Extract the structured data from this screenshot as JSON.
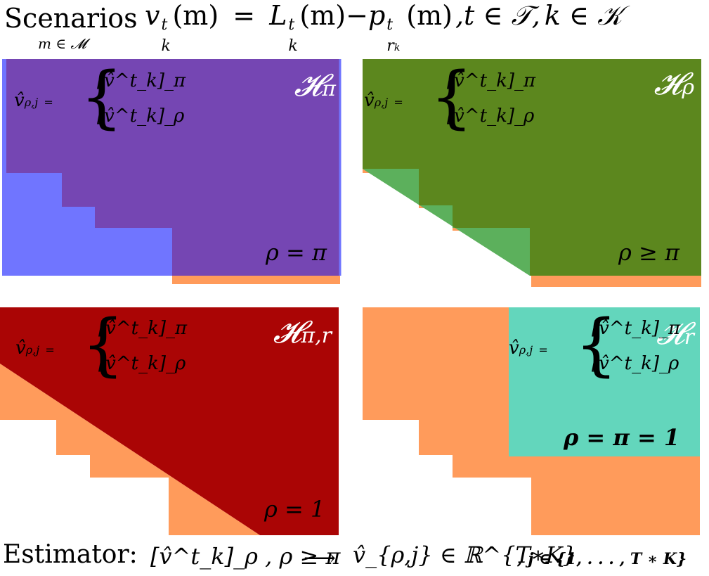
{
  "header": {
    "scenarios_label": "Scenarios",
    "scenarios_sub": "m ∈ 𝓜",
    "equation": "v^t_k(m) = L^t_k(m) − p^t_{r_k}(m), t ∈ 𝒯, k ∈ 𝒦",
    "v": "v",
    "t": "t",
    "k": "k",
    "m": "(m)",
    "eq": "=",
    "L": "L",
    "minus": "−",
    "p": "p",
    "rk": "r",
    "rk_sub": "k",
    "t_in": ",t ∈ 𝒯,",
    "k_in": "k ∈ 𝒦"
  },
  "panels": [
    {
      "id": "pi",
      "space_label": "𝓗",
      "space_sub": "π",
      "condition": "ρ = π",
      "colors": {
        "region": "#7546b3",
        "blue": "#7075ff",
        "orange": "#ff9b5b"
      }
    },
    {
      "id": "rho",
      "space_label": "𝓗",
      "space_sub": "ρ",
      "condition": "ρ ≥ π",
      "colors": {
        "region": "#5c871e",
        "light_green": "#5cb05c",
        "orange": "#ff9b5b"
      }
    },
    {
      "id": "pi-r",
      "space_label": "𝓗",
      "space_sub": "π,r",
      "condition": "ρ = 1",
      "colors": {
        "region": "#aa0505",
        "orange": "#ff9b5b"
      }
    },
    {
      "id": "r",
      "space_label": "𝓗",
      "space_sub": "r",
      "condition": "ρ = π = 1",
      "colors": {
        "region": "#63d6bc",
        "orange": "#ff9b5b"
      }
    }
  ],
  "estimator_block": {
    "lhs": "v̂",
    "lhs_sub": "ρ,j",
    "eq": "=",
    "row1": "[v̂^t_k]_π",
    "row2": "[v̂^t_k]_ρ",
    "row1_sub": "π",
    "row2_sub": "ρ"
  },
  "footer": {
    "label": "Estimator:",
    "lhs": "[v̂^t_k]_ρ , ρ ≥ π",
    "arrow": "⟶",
    "rhs": "v̂_{ρ,j} ∈ ℝ^{T∗K}",
    "index": ", j ∈ {1, . . . , T ∗ K}"
  }
}
